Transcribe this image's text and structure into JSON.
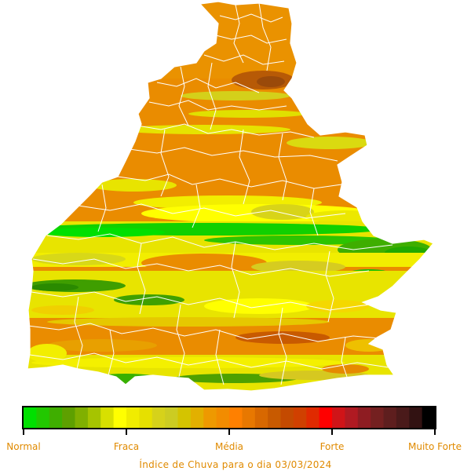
{
  "legend": {
    "ticks": [
      "Normal",
      "Fraca",
      "Média",
      "Forte",
      "Muito Forte"
    ],
    "colors": [
      "#00e000",
      "#22c800",
      "#3fae00",
      "#5ea000",
      "#80b000",
      "#a6c400",
      "#d8e000",
      "#ffff00",
      "#f0ec00",
      "#e6e000",
      "#d6d21a",
      "#cccc22",
      "#d4c400",
      "#e2b000",
      "#ee9900",
      "#f28c00",
      "#ff8000",
      "#e87800",
      "#d86800",
      "#c85a00",
      "#c44a00",
      "#d04000",
      "#e02a00",
      "#ff0000",
      "#d01418",
      "#b01a22",
      "#8e1c22",
      "#742020",
      "#5e1e1e",
      "#4a1a1a",
      "#321212",
      "#000000"
    ]
  },
  "caption": "Índice de Chuva para o dia 03/03/2024"
}
